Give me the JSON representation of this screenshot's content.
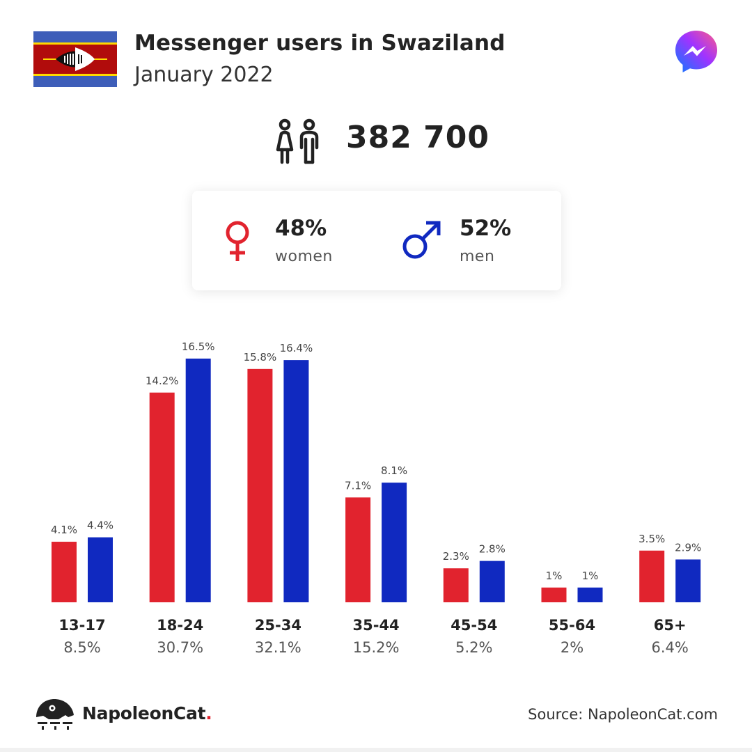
{
  "header": {
    "title": "Messenger users in Swaziland",
    "subtitle": "January 2022"
  },
  "summary": {
    "total_users": "382 700",
    "women": {
      "percent": "48%",
      "label": "women"
    },
    "men": {
      "percent": "52%",
      "label": "men"
    }
  },
  "colors": {
    "women": "#e1232e",
    "men": "#1029c0",
    "text_dark": "#222222",
    "text_muted": "#555555"
  },
  "icons": {
    "flag": "swaziland-flag-icon",
    "app": "messenger-logo-icon",
    "users": "users-icon",
    "female": "female-symbol-icon",
    "male": "male-symbol-icon",
    "brand": "napoleoncat-logo-icon"
  },
  "chart_data": {
    "type": "bar",
    "categories": [
      "13-17",
      "18-24",
      "25-34",
      "35-44",
      "45-54",
      "55-64",
      "65+"
    ],
    "category_totals": [
      "8.5%",
      "30.7%",
      "32.1%",
      "15.2%",
      "5.2%",
      "2%",
      "6.4%"
    ],
    "series": [
      {
        "values": [
          4.1,
          14.2,
          15.8,
          7.1,
          2.3,
          1,
          3.5
        ],
        "labels": [
          "4.1%",
          "14.2%",
          "15.8%",
          "7.1%",
          "2.3%",
          "1%",
          "3.5%"
        ]
      },
      {
        "values": [
          4.4,
          16.5,
          16.4,
          8.1,
          2.8,
          1,
          2.9
        ],
        "labels": [
          "4.4%",
          "16.5%",
          "16.4%",
          "8.1%",
          "2.8%",
          "1%",
          "2.9%"
        ]
      }
    ],
    "ylim": [
      0,
      16.5
    ],
    "grid": false,
    "legend": "none"
  },
  "footer": {
    "brand_name": "NapoleonCat",
    "brand_dot": ".",
    "source": "Source: NapoleonCat.com"
  }
}
